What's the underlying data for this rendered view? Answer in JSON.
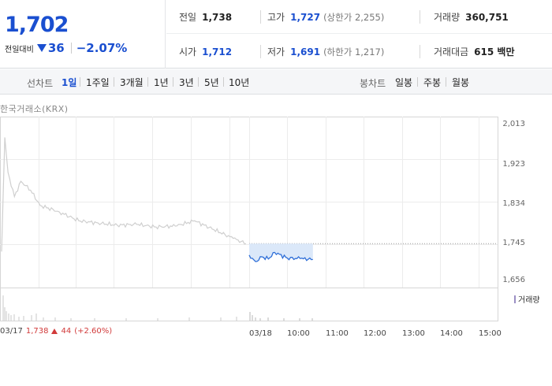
{
  "summary": {
    "price": "1,702",
    "change_label": "전일대비",
    "change_amount": "36",
    "change_percent": "−2.07%",
    "prev_close_label": "전일",
    "prev_close": "1,738",
    "open_label": "시가",
    "open": "1,712",
    "high_label": "고가",
    "high": "1,727",
    "upper_limit": "(상한가 2,255)",
    "low_label": "저가",
    "low": "1,691",
    "lower_limit": "(하한가 1,217)",
    "volume_label": "거래량",
    "volume": "360,751",
    "amount_label": "거래대금",
    "amount": "615 백만"
  },
  "toolbar": {
    "line_label": "선차트",
    "line_periods": [
      "1일",
      "1주일",
      "3개월",
      "1년",
      "3년",
      "5년",
      "10년"
    ],
    "active_period": "1일",
    "candle_label": "봉차트",
    "candle_periods": [
      "일봉",
      "주봉",
      "월봉"
    ]
  },
  "chart": {
    "source": "한국거래소(KRX)",
    "y_ticks": [
      "2,013",
      "1,923",
      "1,834",
      "1,745",
      "1,656"
    ],
    "x_labels": [
      "03/17",
      "03/18",
      "10:00",
      "11:00",
      "12:00",
      "13:00",
      "14:00",
      "15:00"
    ],
    "volume_legend": "거래량",
    "prev_day": {
      "date": "03/17",
      "close": "1,738",
      "change": "44",
      "percent": "(+2.60%)"
    },
    "colors": {
      "prev_line": "#cfcfcf",
      "today_line": "#2f6fd8",
      "today_fill": "#dbe8f9",
      "up": "#d13a3a",
      "down": "#1a4fd0"
    }
  },
  "chart_data": {
    "type": "line",
    "title": "",
    "xlabel": "",
    "ylabel": "",
    "ylim": [
      1656,
      2013
    ],
    "reference_line": 1738,
    "series": [
      {
        "x": [
          "03/17 09:00",
          "03/17 09:05",
          "03/17 09:10",
          "03/17 09:20",
          "03/17 09:30",
          "03/17 09:45",
          "03/17 10:00",
          "03/17 10:30",
          "03/17 11:00",
          "03/17 11:30",
          "03/17 12:00",
          "03/17 12:30",
          "03/17 13:00",
          "03/17 13:30",
          "03/17 14:00",
          "03/17 14:30",
          "03/17 15:00",
          "03/17 15:20"
        ],
        "values": [
          1720,
          1980,
          1900,
          1845,
          1880,
          1860,
          1825,
          1810,
          1790,
          1785,
          1780,
          1782,
          1776,
          1778,
          1790,
          1770,
          1750,
          1738
        ]
      },
      {
        "x": [
          "03/18 09:00",
          "03/18 09:10",
          "03/18 09:20",
          "03/18 09:30",
          "03/18 09:40",
          "03/18 10:00",
          "03/18 10:20",
          "03/18 10:40"
        ],
        "values": [
          1712,
          1697,
          1708,
          1703,
          1718,
          1705,
          1704,
          1702
        ]
      }
    ]
  }
}
